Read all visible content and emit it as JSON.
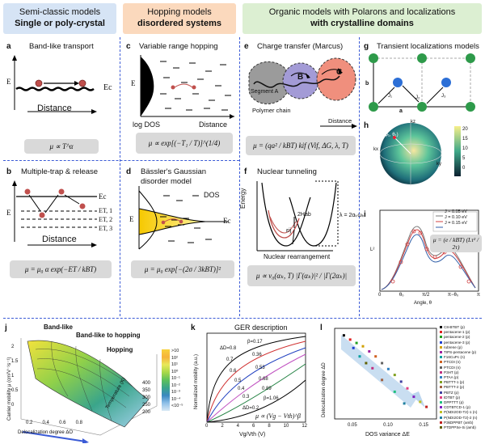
{
  "headers": {
    "col1_line1": "Semi-classic models",
    "col1_line2": "Single or poly-crystal",
    "col2_line1": "Hopping models",
    "col2_line2": "disordered systems",
    "col3_line1": "Organic models with Polarons and localizations",
    "col3_line2": "with crystalline domains",
    "col1_color": "#d6e4f5",
    "col2_color": "#fbd9bd",
    "col3_color": "#dcefd2"
  },
  "panels": {
    "a": {
      "label": "a",
      "title": "Band-like transport",
      "ec": "Ec",
      "ylabel": "E",
      "xlabel": "Distance",
      "formula": "μ ∝ T^α"
    },
    "b": {
      "label": "b",
      "title": "Multiple-trap & release",
      "ylabel": "E",
      "xlabel": "Distance",
      "levels": [
        "Ec",
        "ET, 1",
        "ET, 2",
        "ET, 3"
      ],
      "formula": "μ = μ₀ α exp(−ET / kBT)"
    },
    "c": {
      "label": "c",
      "title": "Variable range hopping",
      "ylabel": "E",
      "xlabel_left": "log DOS",
      "xlabel_right": "Distance",
      "formula": "μ ∝ exp[(−T₁ / T)]^(1/4)"
    },
    "d": {
      "label": "d",
      "title": "Bässler's Gaussian",
      "title2": "disorder model",
      "dos": "DOS",
      "ec": "Ec",
      "ylabel": "E",
      "formula": "μ = μ₀ exp[−(2σ / 3kBT)]²"
    },
    "e": {
      "label": "e",
      "title": "Charge transfer (Marcus)",
      "segment": "Segment A",
      "b": "B",
      "c": "C",
      "chain": "Polymer chain",
      "xlabel": "Distance",
      "formula": "μ = (qa² / kBT) kif (Vif, ΔG, λ, T)"
    },
    "f": {
      "label": "f",
      "title": "Nuclear tunneling",
      "ylabel": "Energy",
      "xlabel": "Nuclear rearrangement",
      "hab": "2Hab",
      "eij": "εij",
      "lambda": "λ = 2αₖωₖ",
      "formula": "μ ∝ v₀(αₖ, T) |Γ(αₖ)|² / |Γ(2αₖ)|"
    },
    "g": {
      "label": "g",
      "title": "Transient localizations models",
      "axis_a": "a",
      "axis_b": "b",
      "j1": "J₁",
      "j2": "J₂",
      "j3": "J₃"
    },
    "h": {
      "label": "h",
      "scale_max": "20",
      "scale_vals": [
        "20",
        "15",
        "10",
        "5",
        "0"
      ],
      "axis_labels": [
        "kx",
        "ky",
        "kz"
      ],
      "vec_label": "(φ₁, θ₁)"
    },
    "i": {
      "label": "i",
      "ylabel": "L²",
      "xlabel": "Angle, θ",
      "legend": [
        "J = 0.05 eV",
        "J = 0.10 eV",
        "J = 0.15 eV"
      ],
      "xticks": [
        "0",
        "θ₀",
        "π/2",
        "π−θ₀",
        "π"
      ],
      "formula": "μ = (e / kBT) (Lτ² / 2τ)"
    },
    "j": {
      "label": "j",
      "bandlike": "Band-like",
      "to_hopping": "Band-like to hopping",
      "hopping": "Hopping",
      "zlabel": "Carrier mobility μ (cm²V⁻¹s⁻¹)",
      "xlabel": "Delocalization degree ΔO",
      "ylabel": "Temperature (K)",
      "temp_ticks": [
        "400",
        "350",
        "300",
        "250",
        "200"
      ],
      "deloc_ticks": [
        "0.2",
        "0.4",
        "0.6",
        "0.8"
      ],
      "mob_ticks": [
        "2",
        "1.5",
        "1",
        "0.5",
        "0"
      ],
      "cbar": [
        ">10",
        "10²",
        "10¹",
        "10⁰",
        "10⁻¹",
        "10⁻²",
        "10⁻³",
        "10⁻⁴",
        "<10⁻⁵"
      ]
    },
    "k": {
      "label": "k",
      "title": "GER description",
      "ylabel": "Normalized mobility (a.u.)",
      "xlabel": "Vg/Vth (V)",
      "xticks": [
        "0",
        "2",
        "4",
        "6",
        "8",
        "10",
        "12"
      ],
      "curve_labels": [
        "ΔD=0.8",
        "β=0.17",
        "0.7",
        "0.36",
        "0.6",
        "0.53",
        "0.5",
        "0.68",
        "0.4",
        "0.89",
        "0.3",
        "β=1.06",
        "ΔD=0.2"
      ],
      "formula": "μ ∝ (Vg − Vth)^β"
    },
    "l": {
      "label": "l",
      "ylabel": "Delocalization degree ΔD",
      "xlabel": "DOS variance ΔE",
      "xticks": [
        "0.05",
        "0.10",
        "0.15"
      ],
      "legend": [
        "C8-BTBT (p)",
        "pentacene-1 (p)",
        "pentacene-2 (p)",
        "pentacene-3 (p)",
        "rubrene (p)",
        "TIPS-pentacene (p)",
        "F16CuPc (n)",
        "PTCDI (n)",
        "PTCDI (n)",
        "P3HT (p)",
        "PTAA (p)",
        "PBTTT-1 (p)",
        "PBTTT-2 (p)",
        "PBTZ (p)",
        "IDTBT (p)",
        "DPPTTT (p)",
        "CDTBTCD-1 (p)",
        "P(NDI2OD-T2)-1 (n)",
        "P(NDI2OD-T2)-2 (n)",
        "P3kDPPBT (amb)",
        "PTDPPSe-Si (amb)"
      ]
    }
  }
}
